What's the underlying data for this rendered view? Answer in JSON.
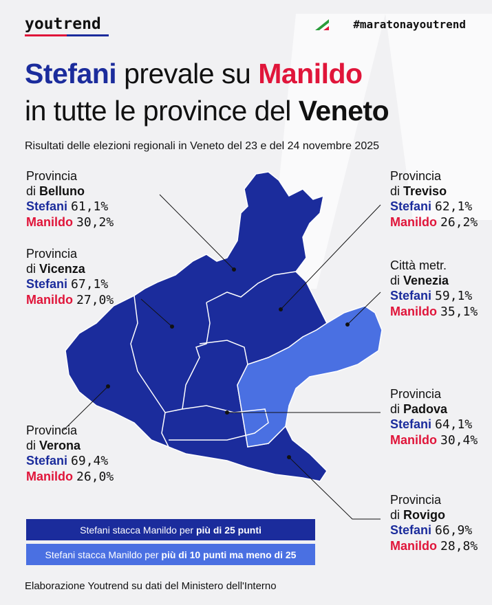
{
  "header": {
    "brand": "youtrend",
    "hashtag": "#maratonayoutrend"
  },
  "title": {
    "line1": [
      "Stefani",
      "prevale su",
      "Manildo"
    ],
    "line2": [
      "in tutte le province del",
      "Veneto"
    ]
  },
  "subtitle": "Risultati delle elezioni regionali in Veneto del 23 e del 24 novembre 2025",
  "provinces": [
    {
      "prefix": "Provincia",
      "of": "di",
      "name": "Belluno",
      "results": [
        {
          "candidate": "Stefani",
          "share": "61,1%"
        },
        {
          "candidate": "Manildo",
          "share": "30,2%"
        }
      ]
    },
    {
      "prefix": "Provincia",
      "of": "di",
      "name": "Vicenza",
      "results": [
        {
          "candidate": "Stefani",
          "share": "67,1%"
        },
        {
          "candidate": "Manildo",
          "share": "27,0%"
        }
      ]
    },
    {
      "prefix": "Provincia",
      "of": "di",
      "name": "Verona",
      "results": [
        {
          "candidate": "Stefani",
          "share": "69,4%"
        },
        {
          "candidate": "Manildo",
          "share": "26,0%"
        }
      ]
    },
    {
      "prefix": "Provincia",
      "of": "di",
      "name": "Treviso",
      "results": [
        {
          "candidate": "Stefani",
          "share": "62,1%"
        },
        {
          "candidate": "Manildo",
          "share": "26,2%"
        }
      ]
    },
    {
      "prefix": "Città metr.",
      "of": "di",
      "name": "Venezia",
      "results": [
        {
          "candidate": "Stefani",
          "share": "59,1%"
        },
        {
          "candidate": "Manildo",
          "share": "35,1%"
        }
      ]
    },
    {
      "prefix": "Provincia",
      "of": "di",
      "name": "Padova",
      "results": [
        {
          "candidate": "Stefani",
          "share": "64,1%"
        },
        {
          "candidate": "Manildo",
          "share": "30,4%"
        }
      ]
    },
    {
      "prefix": "Provincia",
      "of": "di",
      "name": "Rovigo",
      "results": [
        {
          "candidate": "Stefani",
          "share": "66,9%"
        },
        {
          "candidate": "Manildo",
          "share": "28,8%"
        }
      ]
    }
  ],
  "legend": [
    {
      "text": "Stefani stacca Manildo per",
      "emphasis": "più di 25 punti"
    },
    {
      "text": "Stefani stacca Manildo per",
      "emphasis": "più di 10 punti ma meno di 25"
    }
  ],
  "source": "Elaborazione Youtrend su dati del Ministero dell'Interno"
}
